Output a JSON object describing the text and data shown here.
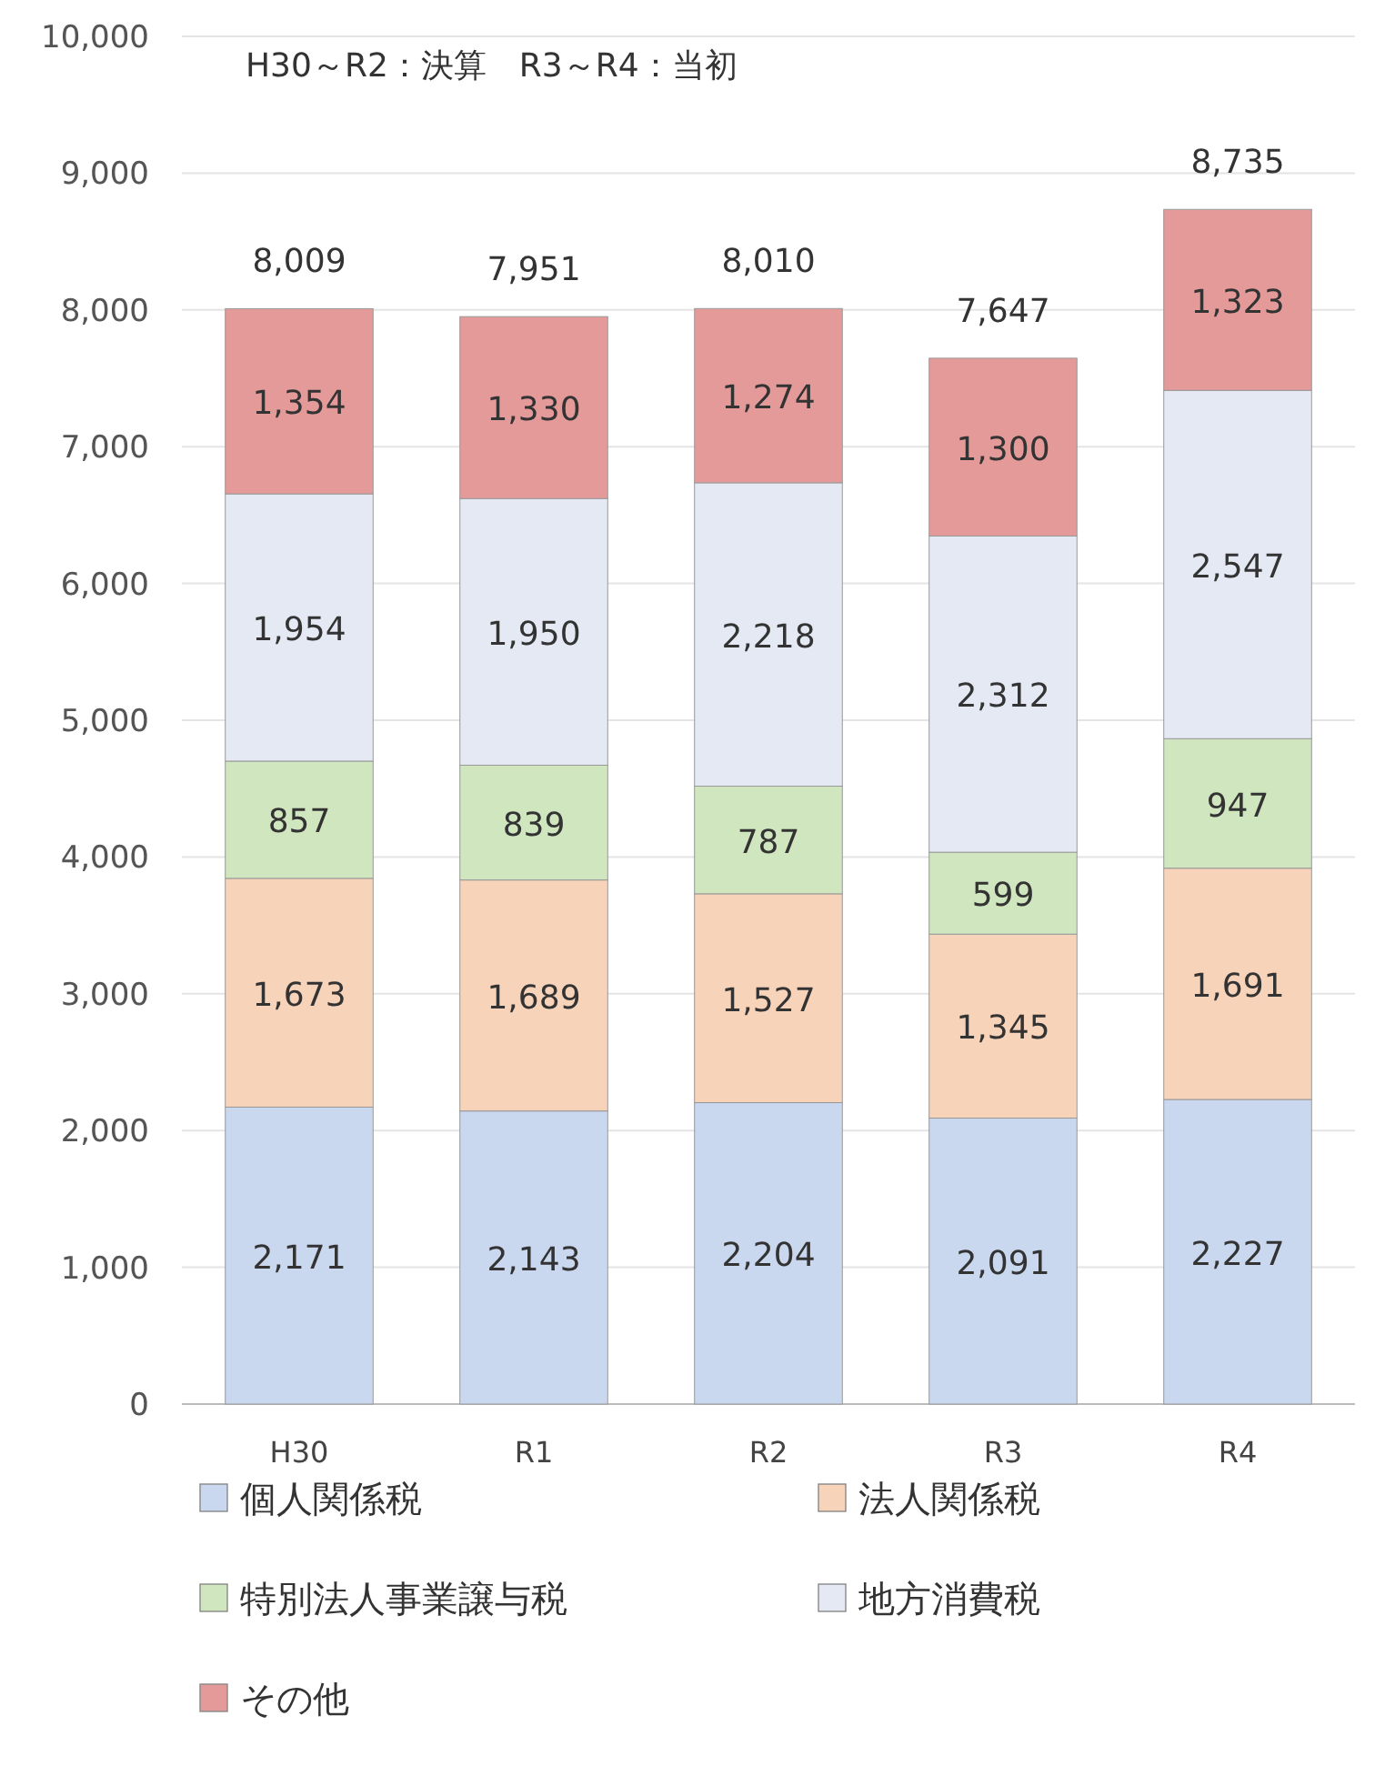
{
  "chart_data": {
    "type": "bar",
    "stacked": true,
    "annotations": [
      "H30～R2：決算　R3～R4：当初"
    ],
    "categories": [
      "H30",
      "R1",
      "R2",
      "R3",
      "R4"
    ],
    "series": [
      {
        "name": "個人関係税",
        "color": "#c9d7ef",
        "values": [
          2171,
          2143,
          2204,
          2091,
          2227
        ],
        "value_labels": [
          "2,171",
          "2,143",
          "2,204",
          "2,091",
          "2,227"
        ]
      },
      {
        "name": "法人関係税",
        "color": "#f7d3b9",
        "values": [
          1673,
          1689,
          1527,
          1345,
          1691
        ],
        "value_labels": [
          "1,673",
          "1,689",
          "1,527",
          "1,345",
          "1,691"
        ]
      },
      {
        "name": "特別法人事業譲与税",
        "color": "#cfe6bf",
        "values": [
          857,
          839,
          787,
          599,
          947
        ],
        "value_labels": [
          "857",
          "839",
          "787",
          "599",
          "947"
        ]
      },
      {
        "name": "地方消費税",
        "color": "#e4e9f4",
        "values": [
          1954,
          1950,
          2218,
          2312,
          2547
        ],
        "value_labels": [
          "1,954",
          "1,950",
          "2,218",
          "2,312",
          "2,547"
        ]
      },
      {
        "name": "その他",
        "color": "#e59a9a",
        "values": [
          1354,
          1330,
          1274,
          1300,
          1323
        ],
        "value_labels": [
          "1,354",
          "1,330",
          "1,274",
          "1,300",
          "1,323"
        ]
      }
    ],
    "totals": [
      "8,009",
      "7,951",
      "8,010",
      "7,647",
      "8,735"
    ],
    "ylim": [
      0,
      10000
    ],
    "yticks": [
      0,
      {
        "value": 1000,
        "label": "1,000"
      },
      {
        "value": 2000,
        "label": "2,000"
      },
      {
        "value": 3000,
        "label": "3,000"
      },
      {
        "value": 4000,
        "label": "4,000"
      },
      {
        "value": 5000,
        "label": "5,000"
      },
      {
        "value": 6000,
        "label": "6,000"
      },
      {
        "value": 7000,
        "label": "7,000"
      },
      {
        "value": 8000,
        "label": "8,000"
      },
      {
        "value": 9000,
        "label": "9,000"
      },
      {
        "value": 10000,
        "label": "10,000"
      }
    ],
    "grid": "y",
    "legend": "bottom"
  }
}
